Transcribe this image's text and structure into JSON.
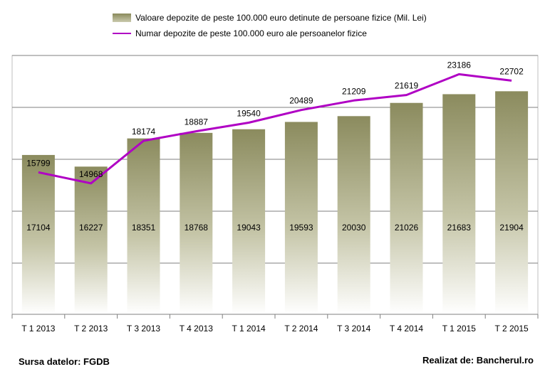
{
  "chart_data": {
    "type": "bar",
    "categories": [
      "T 1 2013",
      "T 2 2013",
      "T 3 2013",
      "T 4 2013",
      "T 1 2014",
      "T 2 2014",
      "T 3 2014",
      "T 4 2014",
      "T 1 2015",
      "T 2 2015"
    ],
    "series": [
      {
        "name": "Valoare depozite de peste 100.000 euro detinute de persoane fizice (Mil. Lei)",
        "type": "bar",
        "values": [
          17104,
          16227,
          18351,
          18768,
          19043,
          19593,
          20030,
          21026,
          21683,
          21904
        ],
        "labels": [
          "17104",
          "16227",
          "18351",
          "18768",
          "19043",
          "19593",
          "20030",
          "21026",
          "21683",
          "21904"
        ]
      },
      {
        "name": "Numar depozite de peste 100.000 euro ale persoanelor fizice",
        "type": "line",
        "values": [
          15799,
          14968,
          18174,
          18887,
          19540,
          20489,
          21209,
          21619,
          23186,
          22702
        ],
        "labels": [
          "15799",
          "14968",
          "18174",
          "18887",
          "19540",
          "20489",
          "21209",
          "21619",
          "23186",
          "22702"
        ]
      }
    ],
    "colors": {
      "bar_top": "#8b8b5e",
      "bar_bottom": "#ffffff",
      "line": "#b000c4",
      "grid": "#7f7f7f"
    },
    "grid": true,
    "legend_position": "top"
  },
  "footer": {
    "source": "Sursa datelor: FGDB",
    "credit": "Realizat de: Bancherul.ro"
  }
}
